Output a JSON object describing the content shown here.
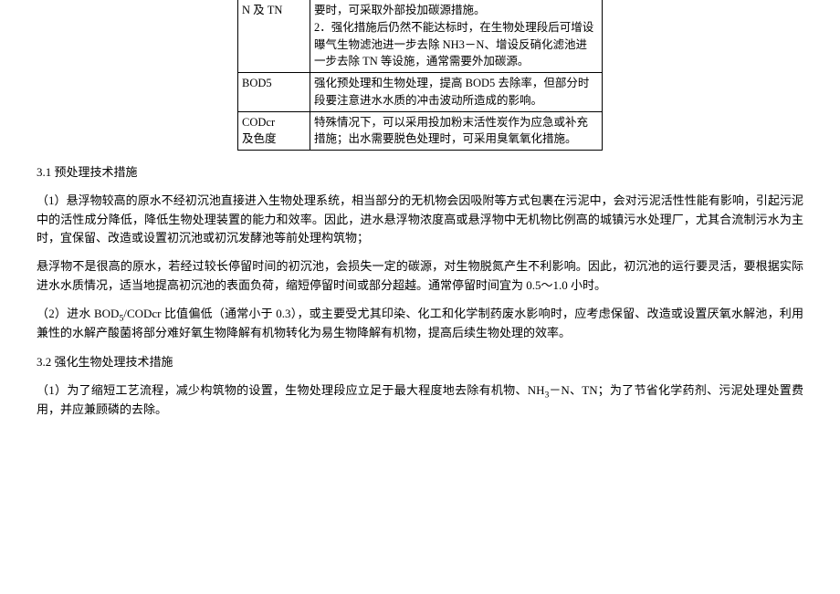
{
  "table": {
    "rows": [
      {
        "a": "N 及 TN",
        "b": "要时，可采取外部投加碳源措施。\n2．强化措施后仍然不能达标时，在生物处理段后可增设曝气生物滤池进一步去除 NH3－N、增设反硝化滤池进一步去除 TN 等设施，通常需要外加碳源。"
      },
      {
        "a": "BOD5",
        "b": "强化预处理和生物处理，提高 BOD5 去除率，但部分时段要注意进水水质的冲击波动所造成的影响。"
      },
      {
        "a": "CODcr\n及色度",
        "b": "特殊情况下，可以采用投加粉末活性炭作为应急或补充措施；出水需要脱色处理时，可采用臭氧氧化措施。"
      }
    ]
  },
  "sections": {
    "h1": "3.1 预处理技术措施",
    "p1": "（1）悬浮物较高的原水不经初沉池直接进入生物处理系统，相当部分的无机物会因吸附等方式包裹在污泥中，会对污泥活性性能有影响，引起污泥中的活性成分降低，降低生物处理装置的能力和效率。因此，进水悬浮物浓度高或悬浮物中无机物比例高的城镇污水处理厂，尤其合流制污水为主时，宜保留、改造或设置初沉池或初沉发酵池等前处理构筑物；",
    "p2": "悬浮物不是很高的原水，若经过较长停留时间的初沉池，会损失一定的碳源，对生物脱氮产生不利影响。因此，初沉池的运行要灵活，要根据实际进水水质情况，适当地提高初沉池的表面负荷，缩短停留时间或部分超越。通常停留时间宜为 0.5～1.0 小时。",
    "p3a": "（2）进水 BOD",
    "p3b": "/CODcr 比值偏低（通常小于 0.3），或主要受尤其印染、化工和化学制药废水影响时，应考虑保留、改造或设置厌氧水解池，利用兼性的水解产酸菌将部分难好氧生物降解有机物转化为易生物降解有机物，提高后续生物处理的效率。",
    "h2": "3.2 强化生物处理技术措施",
    "p4a": "（1）为了缩短工艺流程，减少构筑物的设置，生物处理段应立足于最大程度地去除有机物、NH",
    "p4b": "－N、TN；为了节省化学药剂、污泥处理处置费用，并应兼顾磷的去除。",
    "sub5": "5",
    "sub3": "3"
  }
}
